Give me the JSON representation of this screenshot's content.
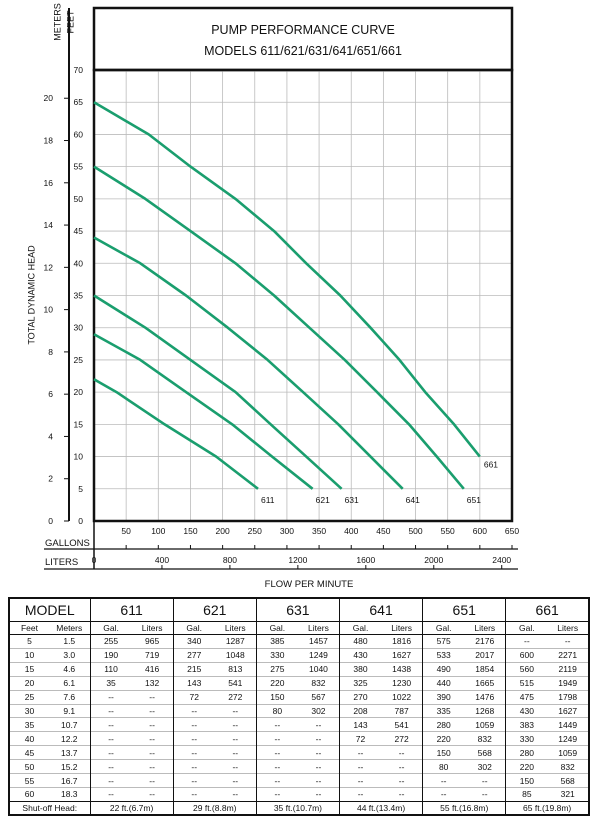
{
  "chart_data": {
    "type": "line",
    "title": "PUMP PERFORMANCE CURVE",
    "subtitle": "MODELS 611/621/631/641/651/661",
    "ylabel": "TOTAL DYNAMIC HEAD",
    "xlabel": "FLOW PER MINUTE",
    "y_feet_label": "FEET",
    "y_meters_label": "METERS",
    "x_gallons_label": "GALLONS",
    "x_liters_label": "LITERS",
    "feet_ticks": [
      "0",
      "5",
      "10",
      "15",
      "20",
      "25",
      "30",
      "35",
      "40",
      "45",
      "50",
      "55",
      "60",
      "65",
      "70"
    ],
    "meter_ticks": [
      "0",
      "2",
      "4",
      "6",
      "8",
      "10",
      "12",
      "14",
      "16",
      "18",
      "20"
    ],
    "gallon_ticks": [
      "50",
      "100",
      "150",
      "200",
      "250",
      "300",
      "350",
      "400",
      "450",
      "500",
      "550",
      "600",
      "650"
    ],
    "liter_ticks": [
      "0",
      "400",
      "800",
      "1200",
      "1600",
      "2000",
      "2400"
    ],
    "xlim": [
      0,
      650
    ],
    "ylim": [
      0,
      70
    ],
    "grid": true,
    "curve_color": "#1a9e6e",
    "series": [
      {
        "name": "611",
        "points": [
          [
            0,
            22
          ],
          [
            35,
            20
          ],
          [
            110,
            15
          ],
          [
            190,
            10
          ],
          [
            255,
            5
          ]
        ]
      },
      {
        "name": "621",
        "points": [
          [
            0,
            29
          ],
          [
            72,
            25
          ],
          [
            143,
            20
          ],
          [
            215,
            15
          ],
          [
            277,
            10
          ],
          [
            340,
            5
          ]
        ]
      },
      {
        "name": "631",
        "points": [
          [
            0,
            35
          ],
          [
            80,
            30
          ],
          [
            150,
            25
          ],
          [
            220,
            20
          ],
          [
            275,
            15
          ],
          [
            330,
            10
          ],
          [
            385,
            5
          ]
        ]
      },
      {
        "name": "641",
        "points": [
          [
            0,
            44
          ],
          [
            72,
            40
          ],
          [
            143,
            35
          ],
          [
            208,
            30
          ],
          [
            270,
            25
          ],
          [
            325,
            20
          ],
          [
            380,
            15
          ],
          [
            430,
            10
          ],
          [
            480,
            5
          ]
        ]
      },
      {
        "name": "651",
        "points": [
          [
            0,
            55
          ],
          [
            80,
            50
          ],
          [
            150,
            45
          ],
          [
            220,
            40
          ],
          [
            280,
            35
          ],
          [
            335,
            30
          ],
          [
            390,
            25
          ],
          [
            440,
            20
          ],
          [
            490,
            15
          ],
          [
            533,
            10
          ],
          [
            575,
            5
          ]
        ]
      },
      {
        "name": "661",
        "points": [
          [
            0,
            65
          ],
          [
            85,
            60
          ],
          [
            150,
            55
          ],
          [
            220,
            50
          ],
          [
            280,
            45
          ],
          [
            330,
            40
          ],
          [
            383,
            35
          ],
          [
            430,
            30
          ],
          [
            475,
            25
          ],
          [
            515,
            20
          ],
          [
            560,
            15
          ],
          [
            600,
            10
          ]
        ]
      }
    ]
  },
  "table": {
    "model_label": "MODEL",
    "models": [
      "611",
      "621",
      "631",
      "641",
      "651",
      "661"
    ],
    "feet_label": "Feet",
    "meters_label": "Meters",
    "gal_label": "Gal.",
    "liters_label": "Liters",
    "rows": [
      [
        "5",
        "1.5",
        "255",
        "965",
        "340",
        "1287",
        "385",
        "1457",
        "480",
        "1816",
        "575",
        "2176",
        "--",
        "--"
      ],
      [
        "10",
        "3.0",
        "190",
        "719",
        "277",
        "1048",
        "330",
        "1249",
        "430",
        "1627",
        "533",
        "2017",
        "600",
        "2271"
      ],
      [
        "15",
        "4.6",
        "110",
        "416",
        "215",
        "813",
        "275",
        "1040",
        "380",
        "1438",
        "490",
        "1854",
        "560",
        "2119"
      ],
      [
        "20",
        "6.1",
        "35",
        "132",
        "143",
        "541",
        "220",
        "832",
        "325",
        "1230",
        "440",
        "1665",
        "515",
        "1949"
      ],
      [
        "25",
        "7.6",
        "--",
        "--",
        "72",
        "272",
        "150",
        "567",
        "270",
        "1022",
        "390",
        "1476",
        "475",
        "1798"
      ],
      [
        "30",
        "9.1",
        "--",
        "--",
        "--",
        "--",
        "80",
        "302",
        "208",
        "787",
        "335",
        "1268",
        "430",
        "1627"
      ],
      [
        "35",
        "10.7",
        "--",
        "--",
        "--",
        "--",
        "--",
        "--",
        "143",
        "541",
        "280",
        "1059",
        "383",
        "1449"
      ],
      [
        "40",
        "12.2",
        "--",
        "--",
        "--",
        "--",
        "--",
        "--",
        "72",
        "272",
        "220",
        "832",
        "330",
        "1249"
      ],
      [
        "45",
        "13.7",
        "--",
        "--",
        "--",
        "--",
        "--",
        "--",
        "--",
        "--",
        "150",
        "568",
        "280",
        "1059"
      ],
      [
        "50",
        "15.2",
        "--",
        "--",
        "--",
        "--",
        "--",
        "--",
        "--",
        "--",
        "80",
        "302",
        "220",
        "832"
      ],
      [
        "55",
        "16.7",
        "--",
        "--",
        "--",
        "--",
        "--",
        "--",
        "--",
        "--",
        "--",
        "--",
        "150",
        "568"
      ],
      [
        "60",
        "18.3",
        "--",
        "--",
        "--",
        "--",
        "--",
        "--",
        "--",
        "--",
        "--",
        "--",
        "85",
        "321"
      ]
    ],
    "shutoff_label": "Shut-off Head:",
    "shutoff": [
      "22 ft.(6.7m)",
      "29 ft.(8.8m)",
      "35 ft.(10.7m)",
      "44 ft.(13.4m)",
      "55 ft.(16.8m)",
      "65 ft.(19.8m)"
    ]
  }
}
